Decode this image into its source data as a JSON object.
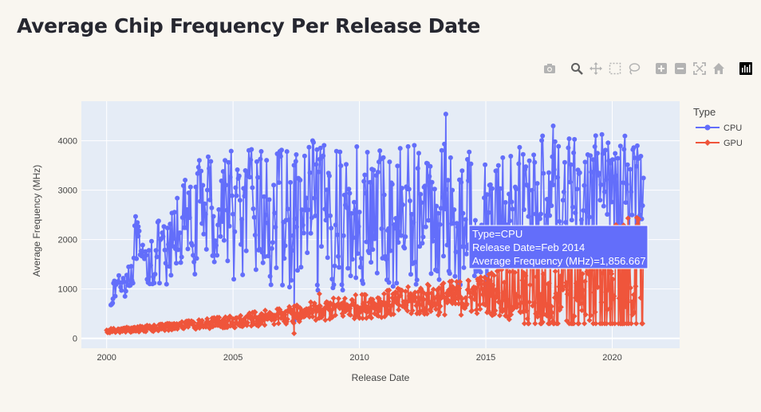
{
  "page": {
    "title": "Average Chip Frequency Per Release Date"
  },
  "modebar": {
    "icons": [
      "camera-icon",
      "zoom-icon",
      "pan-icon",
      "box-select-icon",
      "lasso-select-icon",
      "zoom-in-icon",
      "zoom-out-icon",
      "autoscale-icon",
      "reset-axes-icon",
      "plotly-logo-icon"
    ],
    "icon_color": "#b3b3b3",
    "active_color": "#606060"
  },
  "chart_data": {
    "type": "line",
    "title": "",
    "xlabel": "Release Date",
    "ylabel": "Average Frequency (MHz)",
    "xlim": [
      "1999-01-01",
      "2022-09-01"
    ],
    "ylim": [
      -200,
      4800
    ],
    "x_ticks": [
      "2000",
      "2005",
      "2010",
      "2015",
      "2020"
    ],
    "y_ticks": [
      "0",
      "1000",
      "2000",
      "3000",
      "4000"
    ],
    "grid": true,
    "plot_bgcolor": "#e5ecf6",
    "legend": {
      "title": "Type",
      "position": "top-right"
    },
    "series": [
      {
        "name": "CPU",
        "color": "#636efa",
        "marker": "circle",
        "anchors": [
          [
            "2000-03",
            800
          ],
          [
            "2000-06",
            1100
          ],
          [
            "2000-09",
            1150
          ],
          [
            "2001-01",
            1400
          ],
          [
            "2001-03",
            2050
          ],
          [
            "2001-06",
            1300
          ],
          [
            "2001-09",
            1650
          ],
          [
            "2002-01",
            1700
          ],
          [
            "2002-06",
            1500
          ],
          [
            "2002-09",
            2000
          ],
          [
            "2003-01",
            2400
          ],
          [
            "2003-06",
            2100
          ],
          [
            "2003-09",
            2600
          ],
          [
            "2004-01",
            2900
          ],
          [
            "2004-06",
            2200
          ],
          [
            "2004-09",
            3000
          ],
          [
            "2005-01",
            2500
          ],
          [
            "2005-06",
            2400
          ],
          [
            "2006-01",
            2700
          ],
          [
            "2006-06",
            2300
          ],
          [
            "2007-01",
            2500
          ],
          [
            "2007-06",
            2300
          ],
          [
            "2008-01",
            2600
          ],
          [
            "2008-06",
            2400
          ],
          [
            "2009-01",
            2500
          ],
          [
            "2009-06",
            2300
          ],
          [
            "2010-01",
            2600
          ],
          [
            "2010-06",
            2400
          ],
          [
            "2011-01",
            2500
          ],
          [
            "2011-06",
            2400
          ],
          [
            "2012-01",
            2600
          ],
          [
            "2012-06",
            2500
          ],
          [
            "2013-01",
            2500
          ],
          [
            "2013-06",
            2600
          ],
          [
            "2014-01",
            2300
          ],
          [
            "2014-06",
            2600
          ],
          [
            "2015-01",
            2200
          ],
          [
            "2015-06",
            2900
          ],
          [
            "2016-01",
            2500
          ],
          [
            "2016-06",
            2700
          ],
          [
            "2017-01",
            2900
          ],
          [
            "2017-06",
            3000
          ],
          [
            "2018-01",
            2800
          ],
          [
            "2018-06",
            3000
          ],
          [
            "2019-01",
            2800
          ],
          [
            "2019-06",
            3100
          ],
          [
            "2020-01",
            2900
          ],
          [
            "2020-06",
            3000
          ],
          [
            "2021-01",
            3100
          ],
          [
            "2021-04",
            2600
          ]
        ],
        "spread": [
          [
            "2000-01",
            100
          ],
          [
            "2001-06",
            600
          ],
          [
            "2003-01",
            900
          ],
          [
            "2005-01",
            1300
          ],
          [
            "2008-01",
            1500
          ],
          [
            "2012-01",
            1500
          ],
          [
            "2015-01",
            1300
          ],
          [
            "2018-01",
            1100
          ],
          [
            "2021-04",
            1100
          ]
        ],
        "highlights": [
          [
            "2000-04",
            800
          ],
          [
            "2001-04",
            2070
          ],
          [
            "2013-06",
            4540
          ],
          [
            "2017-09",
            4300
          ],
          [
            "2007-07",
            3720
          ],
          [
            "2007-06",
            350
          ],
          [
            "2011-03",
            1130
          ],
          [
            "2008-05",
            1080
          ],
          [
            "2014-02",
            1857
          ]
        ]
      },
      {
        "name": "GPU",
        "color": "#ef553b",
        "marker": "diamond",
        "anchors": [
          [
            "2000-01",
            150
          ],
          [
            "2001-01",
            180
          ],
          [
            "2002-01",
            210
          ],
          [
            "2003-01",
            260
          ],
          [
            "2004-01",
            300
          ],
          [
            "2005-01",
            340
          ],
          [
            "2006-01",
            400
          ],
          [
            "2007-01",
            450
          ],
          [
            "2008-01",
            550
          ],
          [
            "2009-01",
            600
          ],
          [
            "2010-01",
            650
          ],
          [
            "2011-01",
            700
          ],
          [
            "2012-01",
            750
          ],
          [
            "2013-01",
            800
          ],
          [
            "2014-01",
            830
          ],
          [
            "2015-01",
            900
          ],
          [
            "2016-01",
            1000
          ],
          [
            "2017-01",
            1100
          ],
          [
            "2018-01",
            1200
          ],
          [
            "2019-01",
            1300
          ],
          [
            "2020-01",
            1400
          ],
          [
            "2021-04",
            1500
          ]
        ],
        "spread": [
          [
            "2000-01",
            40
          ],
          [
            "2004-01",
            100
          ],
          [
            "2008-01",
            200
          ],
          [
            "2012-01",
            300
          ],
          [
            "2015-01",
            400
          ],
          [
            "2017-01",
            900
          ],
          [
            "2021-04",
            1000
          ]
        ],
        "highlights": [
          [
            "2021-01",
            2300
          ],
          [
            "2020-06",
            300
          ],
          [
            "2017-03",
            300
          ],
          [
            "2007-06",
            100
          ],
          [
            "2008-06",
            900
          ]
        ]
      }
    ],
    "tooltip": {
      "series": "CPU",
      "x": "2014-02",
      "y": 1856.667,
      "lines": [
        "Type=CPU",
        "Release Date=Feb 2014",
        "Average Frequency (MHz)=1,856.667"
      ]
    }
  }
}
